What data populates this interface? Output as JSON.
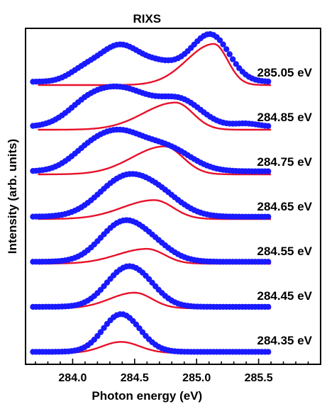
{
  "chart_data": {
    "type": "line",
    "title": "RIXS",
    "xlabel": "Photon energy (eV)",
    "ylabel": "Intensity (arb. units)",
    "xlim": [
      283.62,
      286.0
    ],
    "xticks": [
      284.0,
      284.5,
      285.0,
      285.5
    ],
    "xtick_labels": [
      "284.0",
      "284.5",
      "285.0",
      "285.5"
    ],
    "yticks_shown": false,
    "colors": {
      "data": "#1a1aff",
      "fit": "#e8102a",
      "axes": "#000000"
    },
    "data_x_range": [
      283.68,
      285.6
    ],
    "series": [
      {
        "name": "285.05 eV",
        "offset": 6,
        "data_scale": 1.0,
        "baseline": 0.08,
        "data_peaks": [
          [
            284.38,
            0.88,
            0.17
          ],
          [
            284.08,
            0.22,
            0.12
          ],
          [
            284.72,
            0.36,
            0.14
          ],
          [
            285.13,
            1.06,
            0.14
          ],
          [
            284.95,
            0.25,
            0.12
          ]
        ],
        "fit": {
          "center": 285.14,
          "amp": 1.0,
          "sigma_left": 0.22,
          "sigma_right": 0.11
        }
      },
      {
        "name": "284.85 eV",
        "offset": 5,
        "data_scale": 0.92,
        "baseline": 0.08,
        "data_peaks": [
          [
            284.4,
            0.98,
            0.24
          ],
          [
            284.1,
            0.34,
            0.16
          ],
          [
            284.88,
            0.62,
            0.17
          ],
          [
            285.4,
            0.08,
            0.1
          ]
        ],
        "fit": {
          "center": 284.83,
          "amp": 0.66,
          "sigma_left": 0.26,
          "sigma_right": 0.14
        }
      },
      {
        "name": "284.75 eV",
        "offset": 4,
        "data_scale": 0.92,
        "baseline": 0.08,
        "data_peaks": [
          [
            284.37,
            1.0,
            0.21
          ],
          [
            284.1,
            0.26,
            0.15
          ],
          [
            284.78,
            0.54,
            0.19
          ]
        ],
        "fit": {
          "center": 284.74,
          "amp": 0.68,
          "sigma_left": 0.26,
          "sigma_right": 0.15
        }
      },
      {
        "name": "284.65 eV",
        "offset": 3,
        "data_scale": 0.92,
        "baseline": 0.06,
        "data_peaks": [
          [
            284.42,
            1.0,
            0.21
          ],
          [
            284.72,
            0.42,
            0.18
          ]
        ],
        "fit": {
          "center": 284.66,
          "amp": 0.46,
          "sigma_left": 0.26,
          "sigma_right": 0.15
        }
      },
      {
        "name": "284.55 eV",
        "offset": 2,
        "data_scale": 0.92,
        "baseline": 0.05,
        "data_peaks": [
          [
            284.4,
            1.0,
            0.18
          ],
          [
            284.66,
            0.32,
            0.16
          ]
        ],
        "fit": {
          "center": 284.6,
          "amp": 0.36,
          "sigma_left": 0.24,
          "sigma_right": 0.14
        }
      },
      {
        "name": "284.45 eV",
        "offset": 1,
        "data_scale": 0.92,
        "baseline": 0.04,
        "data_peaks": [
          [
            284.42,
            0.92,
            0.16
          ],
          [
            284.6,
            0.3,
            0.14
          ]
        ],
        "fit": {
          "center": 284.5,
          "amp": 0.38,
          "sigma_left": 0.2,
          "sigma_right": 0.14
        }
      },
      {
        "name": "284.35 eV",
        "offset": 0,
        "data_scale": 0.92,
        "baseline": 0.03,
        "data_peaks": [
          [
            284.38,
            0.95,
            0.14
          ],
          [
            284.55,
            0.12,
            0.12
          ]
        ],
        "fit": {
          "center": 284.39,
          "amp": 0.27,
          "sigma_left": 0.15,
          "sigma_right": 0.15
        }
      }
    ]
  }
}
